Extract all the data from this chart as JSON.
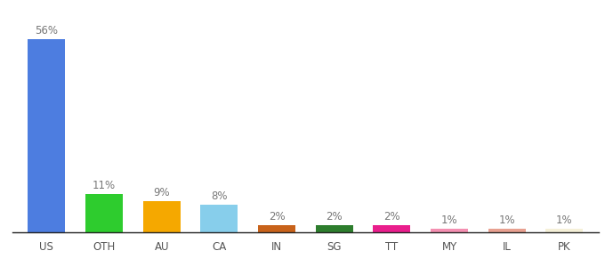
{
  "categories": [
    "US",
    "OTH",
    "AU",
    "CA",
    "IN",
    "SG",
    "TT",
    "MY",
    "IL",
    "PK"
  ],
  "values": [
    56,
    11,
    9,
    8,
    2,
    2,
    2,
    1,
    1,
    1
  ],
  "bar_colors": [
    "#4d7de0",
    "#2ecc2e",
    "#f5a800",
    "#87ceeb",
    "#c8621a",
    "#2d7d2d",
    "#e91e8c",
    "#f48fb1",
    "#e8a090",
    "#f5f0d8"
  ],
  "labels": [
    "56%",
    "11%",
    "9%",
    "8%",
    "2%",
    "2%",
    "2%",
    "1%",
    "1%",
    "1%"
  ],
  "background_color": "#ffffff",
  "ylim": [
    0,
    62
  ],
  "label_fontsize": 8.5,
  "tick_fontsize": 8.5,
  "label_color": "#777777"
}
